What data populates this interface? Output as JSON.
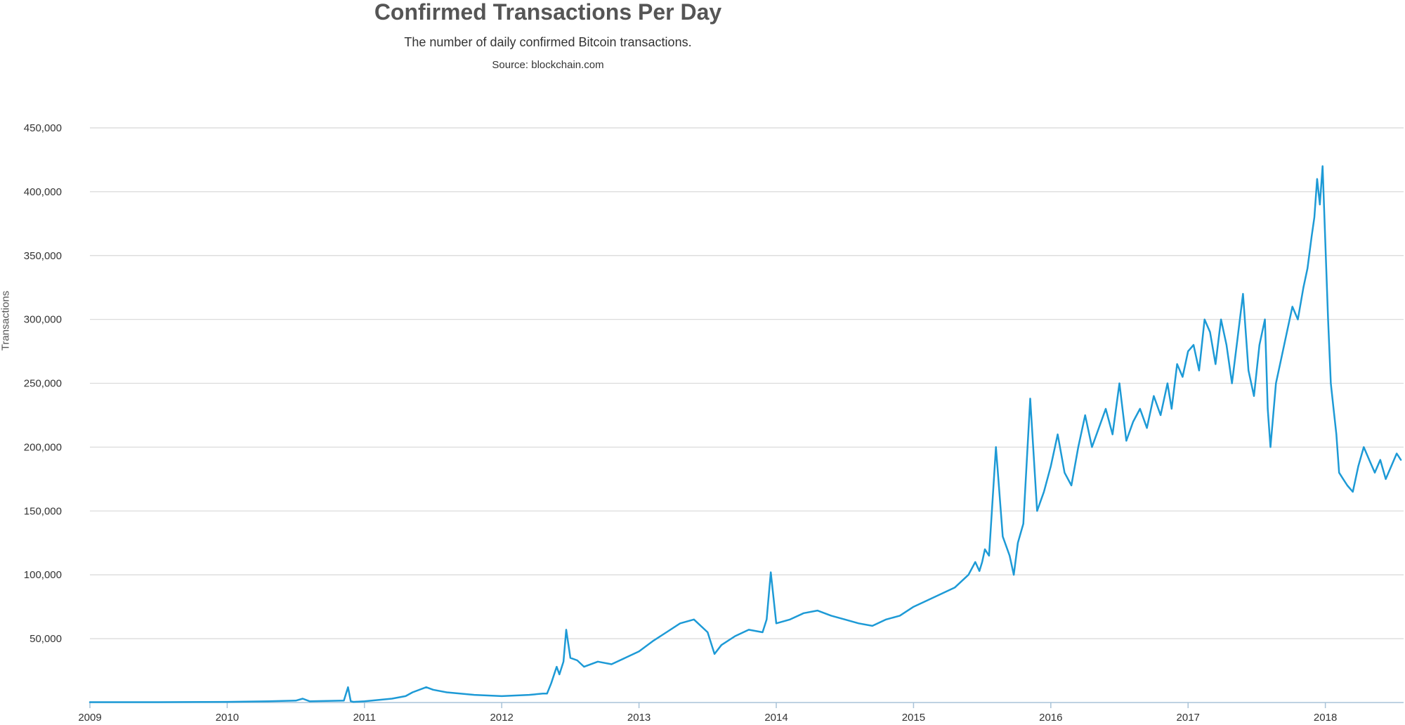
{
  "chart_data": {
    "type": "line",
    "title": "Confirmed Transactions Per Day",
    "subtitle": "The number of daily confirmed Bitcoin transactions.",
    "source": "Source: blockchain.com",
    "xlabel": "",
    "ylabel": "Transactions",
    "xlim": [
      2009.0,
      2018.57
    ],
    "ylim": [
      0,
      450000
    ],
    "grid": true,
    "series_color": "#1d9ad6",
    "x_ticks": [
      2009,
      2010,
      2011,
      2012,
      2013,
      2014,
      2015,
      2016,
      2017,
      2018
    ],
    "x_tick_labels": [
      "2009",
      "2010",
      "2011",
      "2012",
      "2013",
      "2014",
      "2015",
      "2016",
      "2017",
      "2018"
    ],
    "y_ticks": [
      50000,
      100000,
      150000,
      200000,
      250000,
      300000,
      350000,
      400000,
      450000
    ],
    "y_tick_labels": [
      "50,000",
      "100,000",
      "150,000",
      "200,000",
      "250,000",
      "300,000",
      "350,000",
      "400,000",
      "450,000"
    ],
    "series": [
      {
        "name": "Confirmed Transactions",
        "x": [
          2009.0,
          2009.5,
          2010.0,
          2010.3,
          2010.5,
          2010.55,
          2010.6,
          2010.85,
          2010.88,
          2010.9,
          2010.92,
          2011.0,
          2011.1,
          2011.2,
          2011.3,
          2011.35,
          2011.45,
          2011.5,
          2011.6,
          2011.8,
          2012.0,
          2012.2,
          2012.3,
          2012.33,
          2012.36,
          2012.4,
          2012.42,
          2012.45,
          2012.47,
          2012.5,
          2012.55,
          2012.6,
          2012.7,
          2012.8,
          2012.9,
          2013.0,
          2013.1,
          2013.2,
          2013.3,
          2013.4,
          2013.5,
          2013.55,
          2013.6,
          2013.7,
          2013.8,
          2013.9,
          2013.93,
          2013.96,
          2014.0,
          2014.1,
          2014.2,
          2014.3,
          2014.4,
          2014.5,
          2014.6,
          2014.7,
          2014.8,
          2014.9,
          2015.0,
          2015.1,
          2015.2,
          2015.3,
          2015.4,
          2015.45,
          2015.48,
          2015.5,
          2015.52,
          2015.55,
          2015.6,
          2015.65,
          2015.7,
          2015.73,
          2015.76,
          2015.8,
          2015.85,
          2015.9,
          2015.95,
          2016.0,
          2016.05,
          2016.1,
          2016.15,
          2016.2,
          2016.25,
          2016.3,
          2016.35,
          2016.4,
          2016.45,
          2016.5,
          2016.55,
          2016.6,
          2016.65,
          2016.7,
          2016.75,
          2016.8,
          2016.85,
          2016.88,
          2016.92,
          2016.96,
          2017.0,
          2017.04,
          2017.08,
          2017.12,
          2017.16,
          2017.2,
          2017.24,
          2017.28,
          2017.32,
          2017.36,
          2017.4,
          2017.44,
          2017.48,
          2017.52,
          2017.56,
          2017.58,
          2017.6,
          2017.64,
          2017.68,
          2017.72,
          2017.76,
          2017.8,
          2017.84,
          2017.87,
          2017.9,
          2017.92,
          2017.94,
          2017.96,
          2017.98,
          2018.0,
          2018.02,
          2018.04,
          2018.06,
          2018.08,
          2018.1,
          2018.13,
          2018.16,
          2018.2,
          2018.24,
          2018.28,
          2018.32,
          2018.36,
          2018.4,
          2018.44,
          2018.48,
          2018.52,
          2018.55
        ],
        "y": [
          300,
          300,
          500,
          1000,
          1500,
          3000,
          1000,
          1500,
          12000,
          1000,
          500,
          1000,
          2000,
          3000,
          5000,
          8000,
          12000,
          10000,
          8000,
          6000,
          5000,
          6000,
          7000,
          7000,
          15000,
          28000,
          22000,
          32000,
          57000,
          35000,
          33000,
          28000,
          32000,
          30000,
          35000,
          40000,
          48000,
          55000,
          62000,
          65000,
          55000,
          38000,
          45000,
          52000,
          57000,
          55000,
          65000,
          102000,
          62000,
          65000,
          70000,
          72000,
          68000,
          65000,
          62000,
          60000,
          65000,
          68000,
          75000,
          80000,
          85000,
          90000,
          100000,
          110000,
          103000,
          110000,
          120000,
          115000,
          200000,
          130000,
          115000,
          100000,
          125000,
          140000,
          238000,
          150000,
          165000,
          185000,
          210000,
          180000,
          170000,
          200000,
          225000,
          200000,
          215000,
          230000,
          210000,
          250000,
          205000,
          220000,
          230000,
          215000,
          240000,
          225000,
          250000,
          230000,
          265000,
          255000,
          275000,
          280000,
          260000,
          300000,
          290000,
          265000,
          300000,
          280000,
          250000,
          285000,
          320000,
          260000,
          240000,
          280000,
          300000,
          230000,
          200000,
          250000,
          270000,
          290000,
          310000,
          300000,
          325000,
          340000,
          365000,
          380000,
          410000,
          390000,
          420000,
          360000,
          300000,
          250000,
          230000,
          210000,
          180000,
          175000,
          170000,
          165000,
          185000,
          200000,
          190000,
          180000,
          190000,
          175000,
          185000,
          195000,
          190000
        ]
      }
    ]
  }
}
